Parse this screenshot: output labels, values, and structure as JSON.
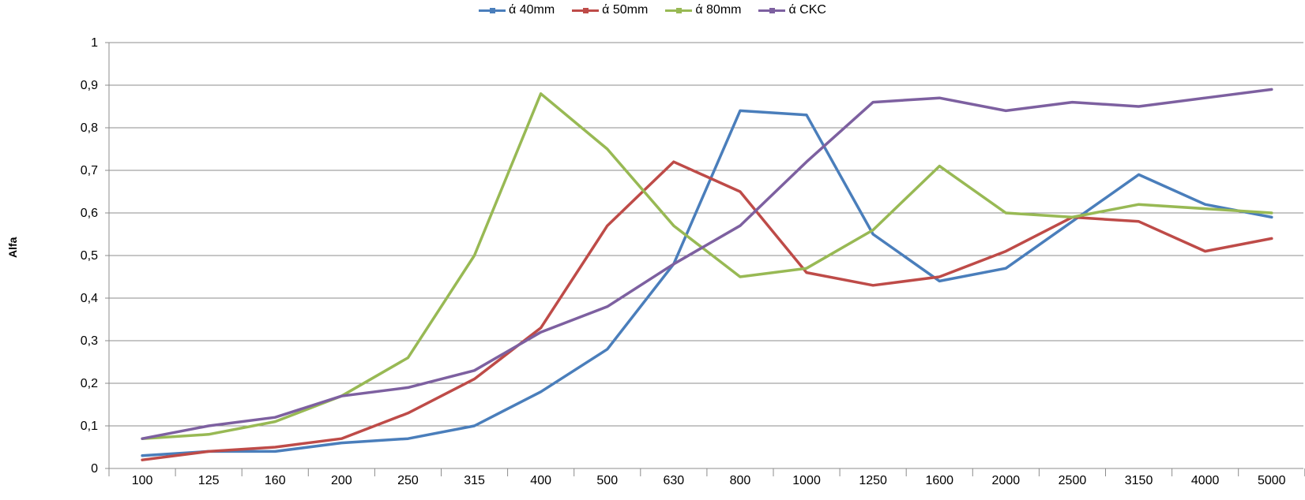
{
  "chart_data": {
    "type": "line",
    "title": "",
    "ylabel": "Alfa",
    "xlabel": "",
    "ylim": [
      0,
      1
    ],
    "y_ticks": [
      "0",
      "0,1",
      "0,2",
      "0,3",
      "0,4",
      "0,5",
      "0,6",
      "0,7",
      "0,8",
      "0,9",
      "1"
    ],
    "categories": [
      "100",
      "125",
      "160",
      "200",
      "250",
      "315",
      "400",
      "500",
      "630",
      "800",
      "1000",
      "1250",
      "1600",
      "2000",
      "2500",
      "3150",
      "4000",
      "5000"
    ],
    "grid": true,
    "legend_position": "top-center",
    "series": [
      {
        "name": "ά 40mm",
        "color": "#4a7ebb",
        "values": [
          0.03,
          0.04,
          0.04,
          0.06,
          0.07,
          0.1,
          0.18,
          0.28,
          0.48,
          0.84,
          0.83,
          0.55,
          0.44,
          0.47,
          0.58,
          0.69,
          0.62,
          0.59
        ]
      },
      {
        "name": "ά 50mm",
        "color": "#be4b48",
        "values": [
          0.02,
          0.04,
          0.05,
          0.07,
          0.13,
          0.21,
          0.33,
          0.57,
          0.72,
          0.65,
          0.46,
          0.43,
          0.45,
          0.51,
          0.59,
          0.58,
          0.51,
          0.54
        ]
      },
      {
        "name": "ά 80mm",
        "color": "#98b954",
        "values": [
          0.07,
          0.08,
          0.11,
          0.17,
          0.26,
          0.5,
          0.88,
          0.75,
          0.57,
          0.45,
          0.47,
          0.56,
          0.71,
          0.6,
          0.59,
          0.62,
          0.61,
          0.6
        ]
      },
      {
        "name": "ά CKC",
        "color": "#7d60a0",
        "values": [
          0.07,
          0.1,
          0.12,
          0.17,
          0.19,
          0.23,
          0.32,
          0.38,
          0.48,
          0.57,
          0.72,
          0.86,
          0.87,
          0.84,
          0.86,
          0.85,
          0.87,
          0.89
        ]
      }
    ]
  }
}
